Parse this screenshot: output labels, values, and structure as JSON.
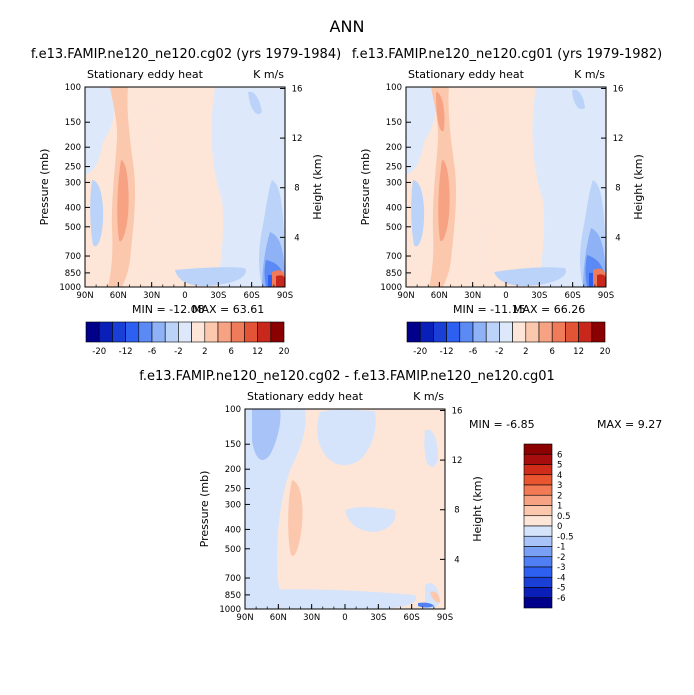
{
  "page_title": "ANN",
  "chart_data": [
    {
      "type": "heatmap",
      "title": "f.e13.FAMIP.ne120_ne120.cg02 (yrs 1979-1984)",
      "left_label": "Stationary eddy heat",
      "right_label": "K m/s",
      "ylabel": "Pressure (mb)",
      "y2label": "Height (km)",
      "x_ticks": [
        "90N",
        "60N",
        "30N",
        "0",
        "30S",
        "60S",
        "90S"
      ],
      "y_ticks": [
        "100",
        "150",
        "200",
        "250",
        "300",
        "400",
        "500",
        "700",
        "850",
        "1000"
      ],
      "y2_ticks": [
        "16",
        "12",
        "8",
        "4"
      ],
      "min_text": "MIN = -12.08",
      "max_text": "MAX = 63.61",
      "colorbar": {
        "colors": [
          "#00008b",
          "#0a1fb8",
          "#1a3fd6",
          "#2d5ff0",
          "#5c8af5",
          "#8fb2f7",
          "#bcd3f9",
          "#dde9fb",
          "#fde6d8",
          "#fbc8ae",
          "#f7a283",
          "#ef7b5a",
          "#e35437",
          "#c8281c",
          "#8b0000"
        ],
        "labels": [
          "-20",
          "-12",
          "-6",
          "-2",
          "2",
          "6",
          "12",
          "20"
        ]
      }
    },
    {
      "type": "heatmap",
      "title": "f.e13.FAMIP.ne120_ne120.cg01 (yrs 1979-1982)",
      "left_label": "Stationary eddy heat",
      "right_label": "K m/s",
      "ylabel": "Pressure (mb)",
      "y2label": "Height (km)",
      "x_ticks": [
        "90N",
        "60N",
        "30N",
        "0",
        "30S",
        "60S",
        "90S"
      ],
      "y_ticks": [
        "100",
        "150",
        "200",
        "250",
        "300",
        "400",
        "500",
        "700",
        "850",
        "1000"
      ],
      "y2_ticks": [
        "16",
        "12",
        "8",
        "4"
      ],
      "min_text": "MIN = -11.15",
      "max_text": "MAX = 66.26",
      "colorbar": {
        "colors": [
          "#00008b",
          "#0a1fb8",
          "#1a3fd6",
          "#2d5ff0",
          "#5c8af5",
          "#8fb2f7",
          "#bcd3f9",
          "#dde9fb",
          "#fde6d8",
          "#fbc8ae",
          "#f7a283",
          "#ef7b5a",
          "#e35437",
          "#c8281c",
          "#8b0000"
        ],
        "labels": [
          "-20",
          "-12",
          "-6",
          "-2",
          "2",
          "6",
          "12",
          "20"
        ]
      }
    },
    {
      "type": "heatmap",
      "title": "f.e13.FAMIP.ne120_ne120.cg02 - f.e13.FAMIP.ne120_ne120.cg01",
      "left_label": "Stationary eddy heat",
      "right_label": "K m/s",
      "ylabel": "Pressure (mb)",
      "y2label": "Height (km)",
      "x_ticks": [
        "90N",
        "60N",
        "30N",
        "0",
        "30S",
        "60S",
        "90S"
      ],
      "y_ticks": [
        "100",
        "150",
        "200",
        "250",
        "300",
        "400",
        "500",
        "700",
        "850",
        "1000"
      ],
      "y2_ticks": [
        "16",
        "12",
        "8",
        "4"
      ],
      "min_text": "MIN =   -6.85",
      "max_text": "MAX =   9.27",
      "colorbar": {
        "colors": [
          "#00008b",
          "#0a1fb8",
          "#1a3fd6",
          "#2d5ff0",
          "#4f7ff2",
          "#7aa0f5",
          "#a7c3f8",
          "#d6e4fb",
          "#fde6d8",
          "#fbc8ae",
          "#f7a283",
          "#f27a55",
          "#e8552f",
          "#cf2d19",
          "#a80d0d",
          "#8b0000"
        ],
        "labels": [
          "-6",
          "-5",
          "-4",
          "-3",
          "-2",
          "-1",
          "-0.5",
          "0",
          "0.5",
          "1",
          "2",
          "3",
          "4",
          "5",
          "6"
        ]
      }
    }
  ]
}
